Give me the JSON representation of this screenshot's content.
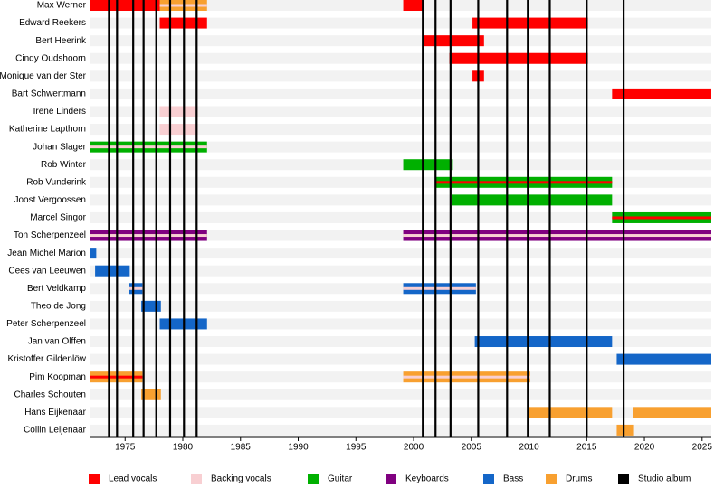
{
  "chart_data": {
    "type": "timeline",
    "xlim": [
      1972,
      2025.8
    ],
    "xticks": [
      1975,
      1980,
      1985,
      1990,
      1995,
      2000,
      2005,
      2010,
      2015,
      2020,
      2025
    ],
    "roles": [
      {
        "name": "Lead vocals",
        "color": "#ff0000"
      },
      {
        "name": "Backing vocals",
        "color": "#f8cfd2"
      },
      {
        "name": "Guitar",
        "color": "#00b000"
      },
      {
        "name": "Keyboards",
        "color": "#800080"
      },
      {
        "name": "Bass",
        "color": "#1466c8"
      },
      {
        "name": "Drums",
        "color": "#f8a030"
      }
    ],
    "albums": {
      "name": "Studio album",
      "color": "#000000",
      "values": [
        1973.6,
        1974.3,
        1975.7,
        1976.6,
        1977.7,
        1978.9,
        1980.1,
        1981.2,
        2000.8,
        2001.9,
        2003.2,
        2005.6,
        2008.1,
        2009.9,
        2011.8,
        2015.0,
        2018.2
      ]
    },
    "members": [
      {
        "name": "Max Werner",
        "spans": [
          {
            "roles": [
              0
            ],
            "start": 1972,
            "end": 1978
          },
          {
            "roles": [
              5,
              1
            ],
            "start": 1978,
            "end": 1982.1
          },
          {
            "roles": [
              0
            ],
            "start": 1999.1,
            "end": 2000.8
          }
        ]
      },
      {
        "name": "Edward Reekers",
        "spans": [
          {
            "roles": [
              0
            ],
            "start": 1978,
            "end": 1982.1
          },
          {
            "roles": [
              0
            ],
            "start": 2005.1,
            "end": 2015.1
          }
        ]
      },
      {
        "name": "Bert Heerink",
        "spans": [
          {
            "roles": [
              0
            ],
            "start": 2000.9,
            "end": 2006.1
          }
        ]
      },
      {
        "name": "Cindy Oudshoorn",
        "spans": [
          {
            "roles": [
              0
            ],
            "start": 2003.1,
            "end": 2015.1
          }
        ]
      },
      {
        "name": "Monique van der Ster",
        "spans": [
          {
            "roles": [
              0
            ],
            "start": 2005.1,
            "end": 2006.1
          }
        ]
      },
      {
        "name": "Bart Schwertmann",
        "spans": [
          {
            "roles": [
              0
            ],
            "start": 2017.2,
            "end": 2025.8
          }
        ]
      },
      {
        "name": "Irene Linders",
        "spans": [
          {
            "roles": [
              1
            ],
            "start": 1978,
            "end": 1981.3
          }
        ]
      },
      {
        "name": "Katherine Lapthorn",
        "spans": [
          {
            "roles": [
              1
            ],
            "start": 1978,
            "end": 1981.3
          }
        ]
      },
      {
        "name": "Johan Slager",
        "spans": [
          {
            "roles": [
              2,
              1
            ],
            "start": 1972,
            "end": 1982.1
          }
        ]
      },
      {
        "name": "Rob Winter",
        "spans": [
          {
            "roles": [
              2
            ],
            "start": 1999.1,
            "end": 2003.4
          }
        ]
      },
      {
        "name": "Rob Vunderink",
        "spans": [
          {
            "roles": [
              2,
              0
            ],
            "start": 2001.9,
            "end": 2017.2
          }
        ]
      },
      {
        "name": "Joost Vergoossen",
        "spans": [
          {
            "roles": [
              2
            ],
            "start": 2003.3,
            "end": 2017.2
          }
        ]
      },
      {
        "name": "Marcel Singor",
        "spans": [
          {
            "roles": [
              2,
              0
            ],
            "start": 2017.2,
            "end": 2025.8
          }
        ]
      },
      {
        "name": "Ton Scherpenzeel",
        "spans": [
          {
            "roles": [
              3,
              1
            ],
            "start": 1972,
            "end": 1982.1
          },
          {
            "roles": [
              3,
              1
            ],
            "start": 1999.1,
            "end": 2025.8
          }
        ]
      },
      {
        "name": "Jean Michel Marion",
        "spans": [
          {
            "roles": [
              4
            ],
            "start": 1972,
            "end": 1972.5
          }
        ]
      },
      {
        "name": "Cees van Leeuwen",
        "spans": [
          {
            "roles": [
              4
            ],
            "start": 1972.4,
            "end": 1975.4
          }
        ]
      },
      {
        "name": "Bert Veldkamp",
        "spans": [
          {
            "roles": [
              4,
              1
            ],
            "start": 1975.3,
            "end": 1976.5
          },
          {
            "roles": [
              4,
              1
            ],
            "start": 1999.1,
            "end": 2005.4
          }
        ]
      },
      {
        "name": "Theo de Jong",
        "spans": [
          {
            "roles": [
              4
            ],
            "start": 1976.4,
            "end": 1978.1
          }
        ]
      },
      {
        "name": "Peter Scherpenzeel",
        "spans": [
          {
            "roles": [
              4
            ],
            "start": 1978,
            "end": 1982.1
          }
        ]
      },
      {
        "name": "Jan van Olffen",
        "spans": [
          {
            "roles": [
              4
            ],
            "start": 2005.3,
            "end": 2017.2
          }
        ]
      },
      {
        "name": "Kristoffer Gildenlöw",
        "spans": [
          {
            "roles": [
              4
            ],
            "start": 2017.6,
            "end": 2025.8
          }
        ]
      },
      {
        "name": "Pim Koopman",
        "spans": [
          {
            "roles": [
              5,
              0
            ],
            "start": 1972,
            "end": 1976.5
          },
          {
            "roles": [
              5,
              1
            ],
            "start": 1999.1,
            "end": 2010.1
          }
        ]
      },
      {
        "name": "Charles Schouten",
        "spans": [
          {
            "roles": [
              5
            ],
            "start": 1976.4,
            "end": 1978.1
          }
        ]
      },
      {
        "name": "Hans Eijkenaar",
        "spans": [
          {
            "roles": [
              5
            ],
            "start": 2010,
            "end": 2017.2
          },
          {
            "roles": [
              5
            ],
            "start": 2019.05,
            "end": 2025.8
          }
        ]
      },
      {
        "name": "Collin Leijenaar",
        "spans": [
          {
            "roles": [
              5
            ],
            "start": 2017.6,
            "end": 2019.1
          }
        ]
      }
    ]
  }
}
